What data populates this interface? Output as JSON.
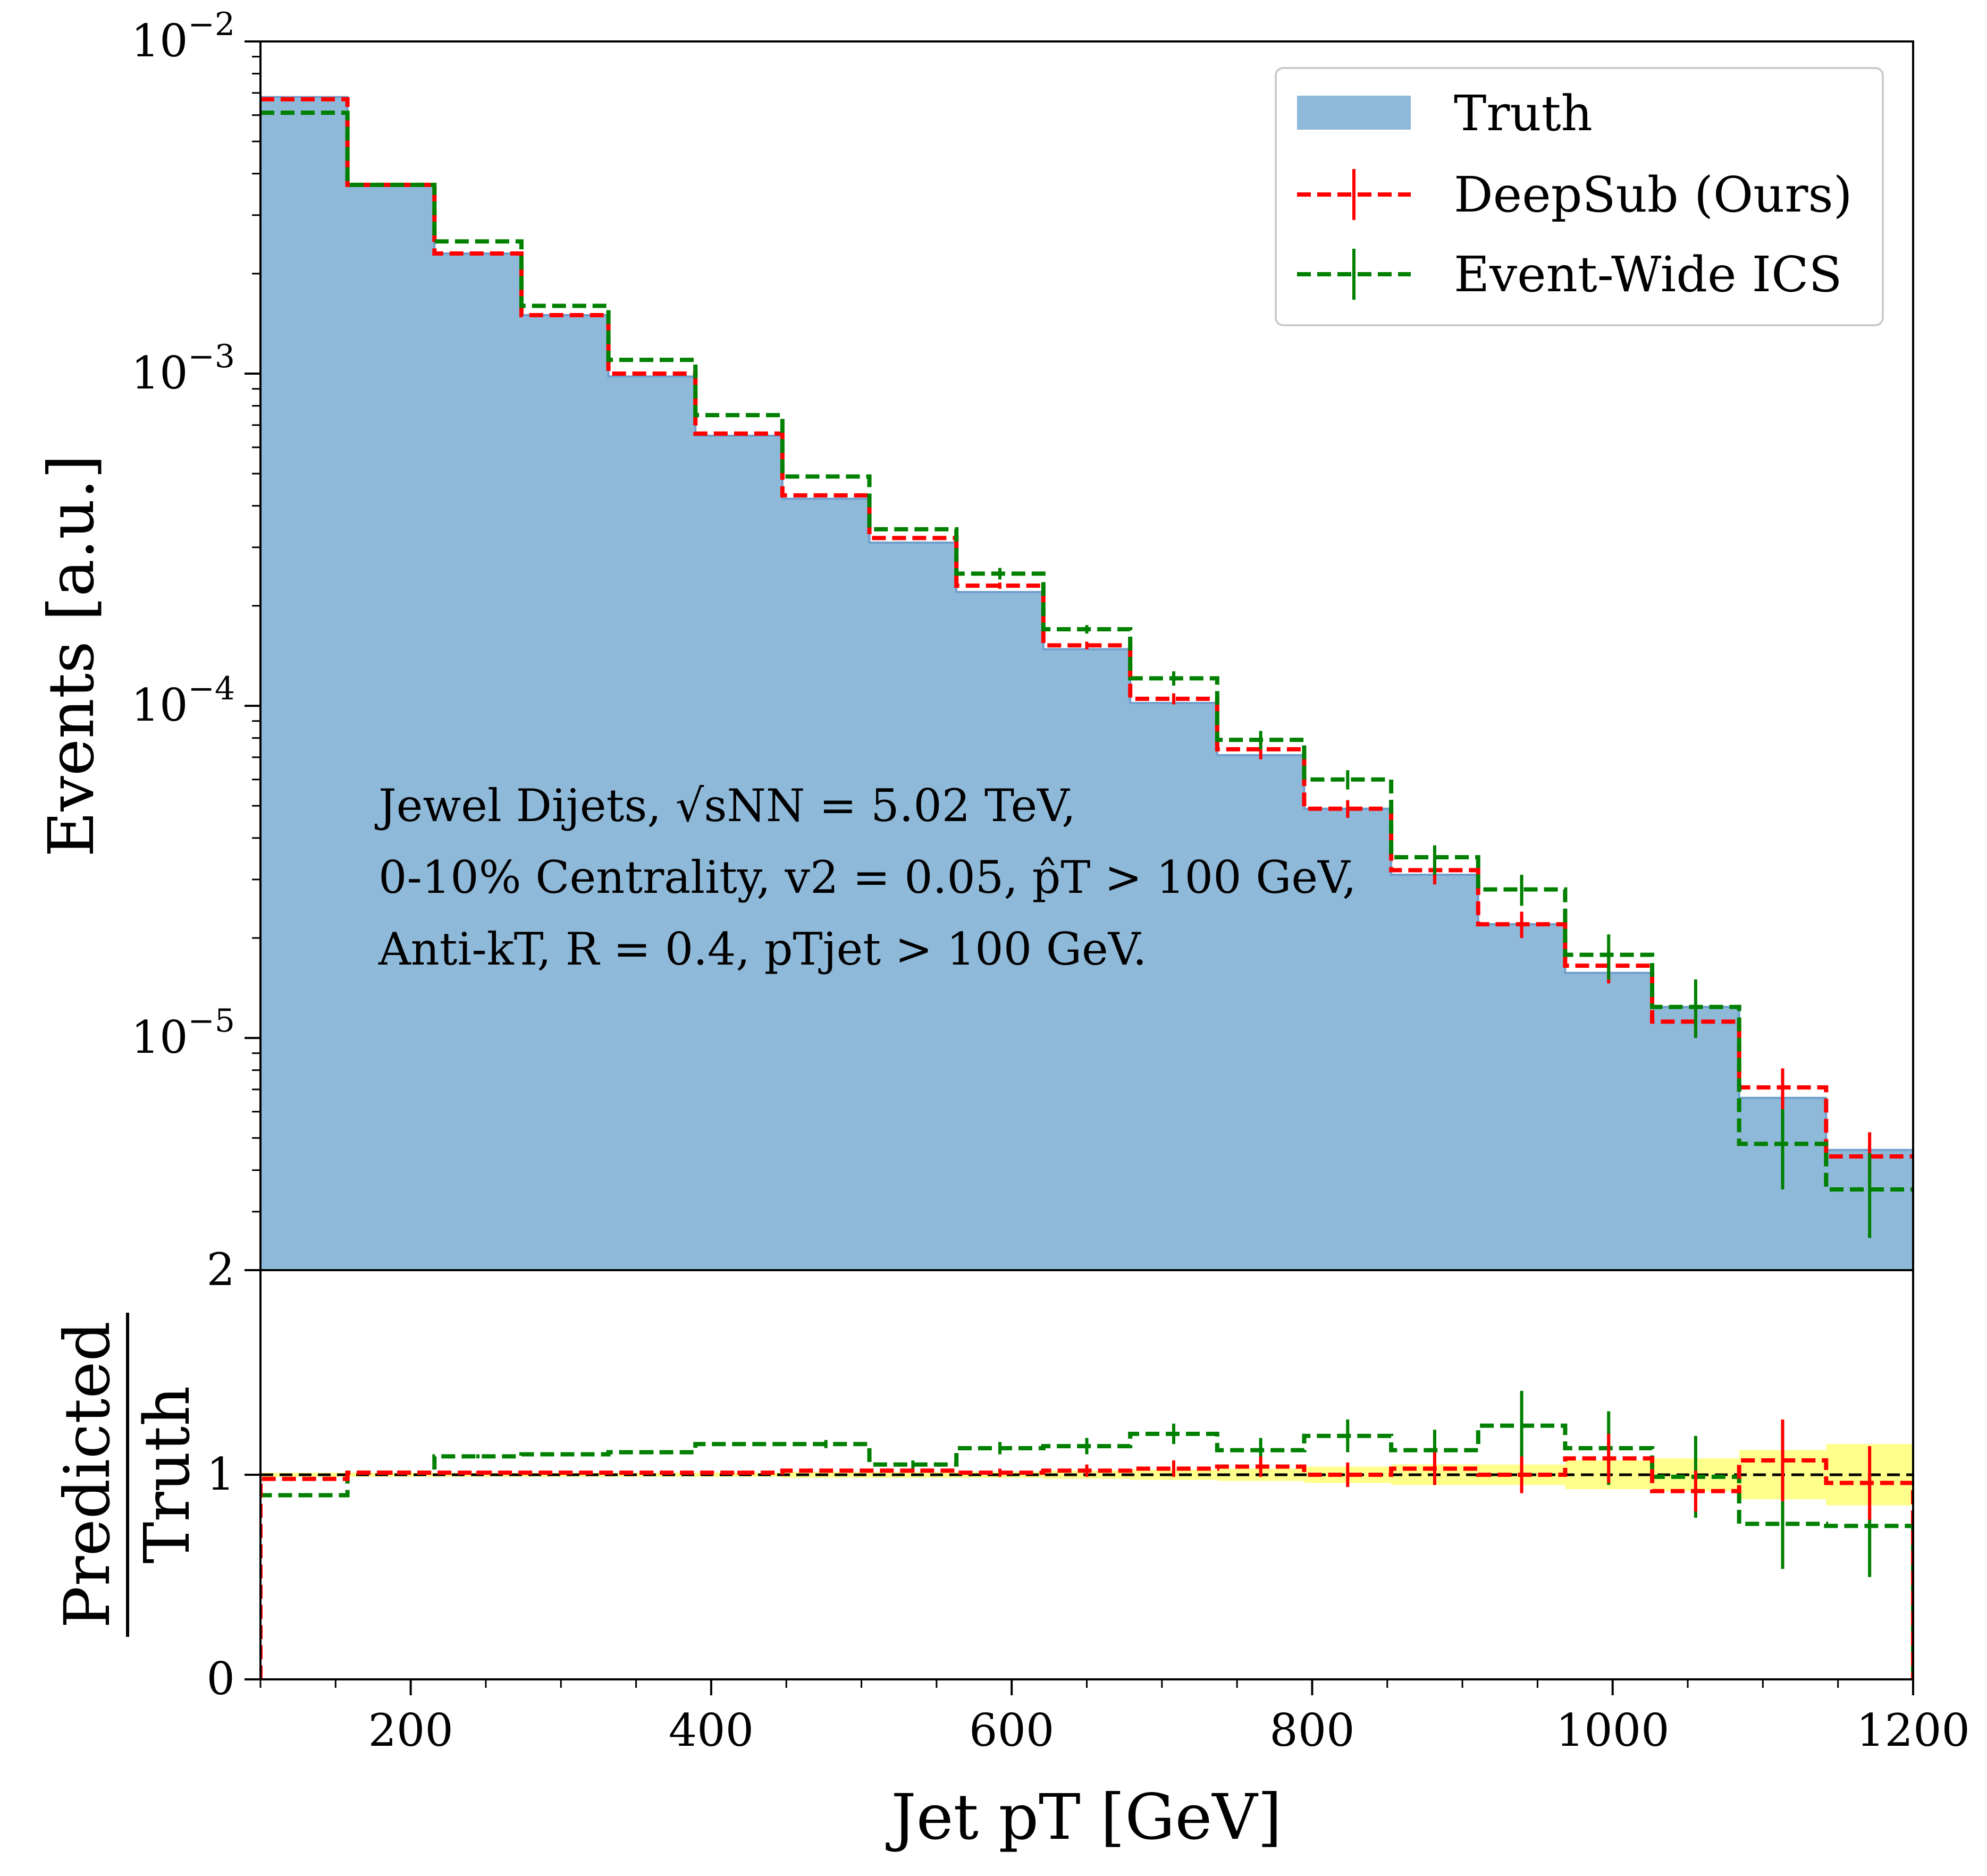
{
  "chart_data": [
    {
      "type": "step",
      "panel": "main",
      "yscale": "log",
      "ylabel": "Events [a.u.]",
      "ylim": [
        2e-06,
        0.01
      ],
      "xlim": [
        100,
        1200
      ],
      "bin_edges": [
        100,
        157.9,
        215.8,
        273.7,
        331.6,
        389.5,
        447.4,
        505.3,
        563.2,
        621.1,
        678.9,
        736.8,
        794.7,
        852.6,
        910.5,
        968.4,
        1026.3,
        1084.2,
        1142.1,
        1200
      ],
      "y_ticks": [
        {
          "value": 0.01,
          "base": "10",
          "exp": "−2"
        },
        {
          "value": 0.001,
          "base": "10",
          "exp": "−3"
        },
        {
          "value": 0.0001,
          "base": "10",
          "exp": "−4"
        },
        {
          "value": 1e-05,
          "base": "10",
          "exp": "−5"
        }
      ],
      "series": [
        {
          "name": "Truth",
          "style": "filled-step",
          "color": "#8fb9d9",
          "values": [
            0.0068,
            0.0037,
            0.0023,
            0.0015,
            0.00098,
            0.00065,
            0.00042,
            0.00031,
            0.00022,
            0.000148,
            0.000102,
            7.1e-05,
            4.9e-05,
            3.1e-05,
            2.2e-05,
            1.57e-05,
            1.24e-05,
            6.6e-06,
            4.6e-06
          ]
        },
        {
          "name": "DeepSub (Ours)",
          "style": "dashed-step",
          "color": "#ff0000",
          "values": [
            0.0067,
            0.0037,
            0.0023,
            0.0015,
            0.001,
            0.00066,
            0.00043,
            0.00032,
            0.00023,
            0.000152,
            0.000105,
            7.4e-05,
            4.9e-05,
            3.2e-05,
            2.2e-05,
            1.65e-05,
            1.12e-05,
            7.1e-06,
            4.4e-06
          ],
          "err_low": [
            0.0067,
            0.0037,
            0.0023,
            0.0015,
            0.001,
            0.00066,
            0.00043,
            0.00032,
            0.000225,
            0.000148,
            0.000101,
            6.9e-05,
            4.6e-05,
            2.9e-05,
            2e-05,
            1.46e-05,
            1.01e-05,
            6.1e-06,
            3.7e-06
          ],
          "err_high": [
            0.0067,
            0.0037,
            0.0023,
            0.0015,
            0.001,
            0.00066,
            0.00043,
            0.00032,
            0.000235,
            0.000156,
            0.000109,
            7.9e-05,
            5.2e-05,
            3.5e-05,
            2.4e-05,
            1.85e-05,
            1.24e-05,
            8.1e-06,
            5.2e-06
          ]
        },
        {
          "name": "Event-Wide ICS",
          "style": "dashed-step",
          "color": "#008000",
          "values": [
            0.0061,
            0.0037,
            0.0025,
            0.0016,
            0.0011,
            0.00075,
            0.00049,
            0.00034,
            0.00025,
            0.00017,
            0.000121,
            7.9e-05,
            6e-05,
            3.5e-05,
            2.8e-05,
            1.78e-05,
            1.24e-05,
            4.8e-06,
            3.5e-06
          ],
          "err_low": [
            0.0061,
            0.0037,
            0.0025,
            0.0016,
            0.0011,
            0.00075,
            0.00049,
            0.00034,
            0.00024,
            0.000165,
            0.000115,
            7.4e-05,
            5.6e-05,
            3.1e-05,
            2.5e-05,
            1.5e-05,
            1e-05,
            3.5e-06,
            2.5e-06
          ],
          "err_high": [
            0.0061,
            0.0037,
            0.0025,
            0.0016,
            0.0011,
            0.00075,
            0.00049,
            0.00034,
            0.00026,
            0.000175,
            0.000127,
            8.4e-05,
            6.4e-05,
            3.8e-05,
            3.1e-05,
            2.05e-05,
            1.5e-05,
            6.1e-06,
            4.5e-06
          ]
        }
      ],
      "legend": {
        "position": "top-right",
        "entries": [
          {
            "label": "Truth",
            "color": "#8fb9d9",
            "kind": "patch"
          },
          {
            "label": "DeepSub (Ours)",
            "color": "#ff0000",
            "kind": "errline"
          },
          {
            "label": "Event-Wide ICS",
            "color": "#008000",
            "kind": "errline"
          }
        ]
      },
      "annotation": {
        "line1": "Jewel Dijets, √sNN = 5.02 TeV,",
        "line2": "0-10% Centrality, v2 = 0.05, p̂T > 100 GeV,",
        "line3": "Anti-kT, R = 0.4, pTjet > 100 GeV."
      }
    },
    {
      "type": "step",
      "panel": "ratio",
      "ylabel_top": "Predicted",
      "ylabel_bottom": "Truth",
      "xlabel": "Jet pT [GeV]",
      "xlim": [
        100,
        1200
      ],
      "ylim": [
        0,
        2
      ],
      "x_ticks": [
        "200",
        "400",
        "600",
        "800",
        "1000",
        "1200"
      ],
      "y_ticks": [
        "0",
        "1",
        "2"
      ],
      "reference_line": 1,
      "uncertainty_band": {
        "color": "#ffff66",
        "half_width": [
          0.01,
          0.01,
          0.01,
          0.01,
          0.01,
          0.01,
          0.015,
          0.015,
          0.015,
          0.02,
          0.025,
          0.03,
          0.04,
          0.05,
          0.05,
          0.07,
          0.08,
          0.12,
          0.15
        ]
      },
      "series": [
        {
          "name": "DeepSub (Ours)",
          "color": "#ff0000",
          "values": [
            0.98,
            1.01,
            1.01,
            1.01,
            1.01,
            1.01,
            1.02,
            1.02,
            1.01,
            1.02,
            1.03,
            1.04,
            1.0,
            1.03,
            1.0,
            1.08,
            0.92,
            1.07,
            0.96
          ],
          "err": [
            0.01,
            0.01,
            0.01,
            0.01,
            0.01,
            0.01,
            0.01,
            0.01,
            0.02,
            0.03,
            0.04,
            0.05,
            0.06,
            0.08,
            0.09,
            0.12,
            0.1,
            0.2,
            0.18
          ]
        },
        {
          "name": "Event-Wide ICS",
          "color": "#008000",
          "values": [
            0.9,
            1.01,
            1.09,
            1.1,
            1.11,
            1.15,
            1.15,
            1.05,
            1.13,
            1.14,
            1.2,
            1.12,
            1.19,
            1.12,
            1.24,
            1.13,
            0.99,
            0.76,
            0.75
          ],
          "err": [
            0.01,
            0.01,
            0.01,
            0.01,
            0.01,
            0.01,
            0.02,
            0.02,
            0.03,
            0.04,
            0.05,
            0.06,
            0.08,
            0.1,
            0.17,
            0.18,
            0.2,
            0.22,
            0.25
          ]
        }
      ]
    }
  ]
}
